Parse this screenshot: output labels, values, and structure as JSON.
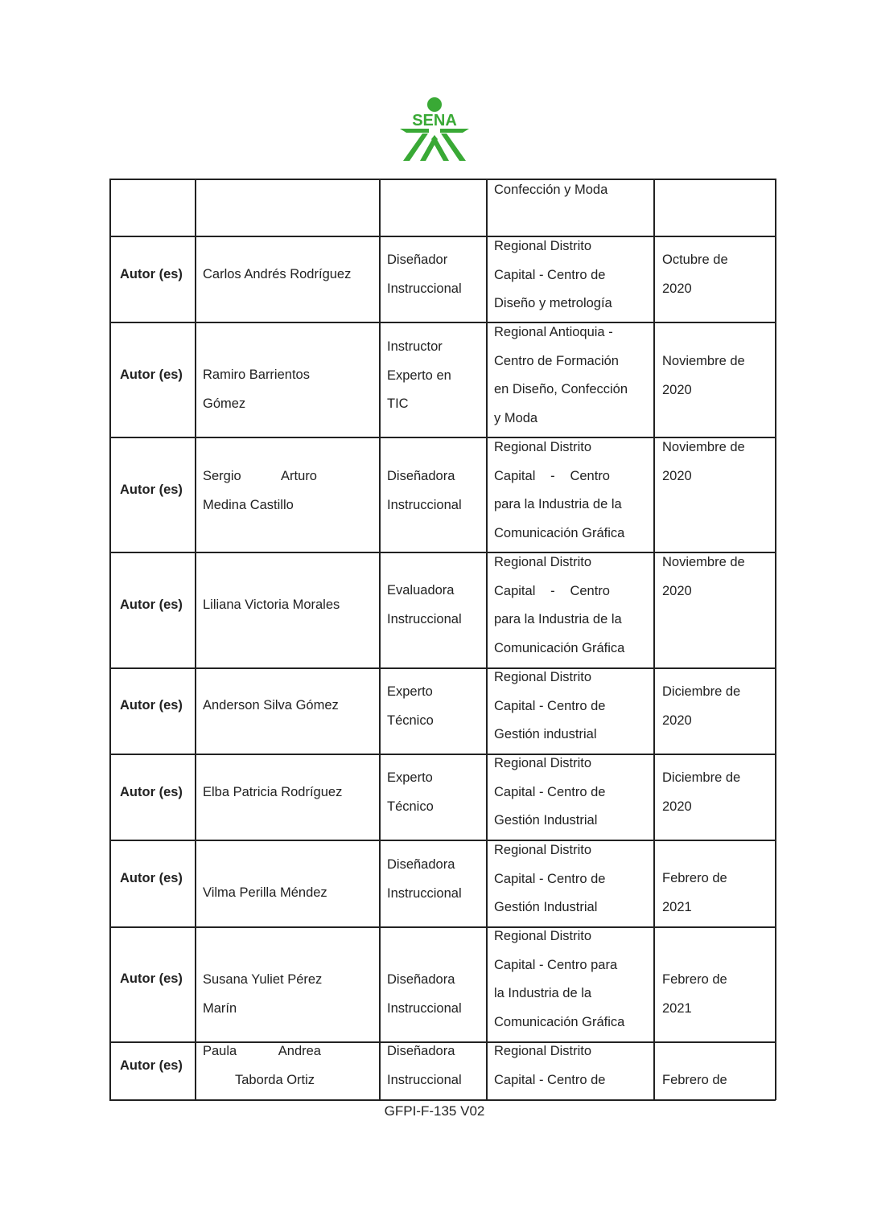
{
  "header": {
    "logo_text": "SENA",
    "logo_color": "#39a935"
  },
  "table": {
    "rows": [
      {
        "label": "",
        "name": [],
        "role": [],
        "location": [
          "Confección y Moda"
        ],
        "date": []
      },
      {
        "label": "Autor (es)",
        "name": [
          "Carlos Andrés Rodríguez"
        ],
        "role": [
          "Diseñador",
          "Instruccional"
        ],
        "location": [
          "Regional Distrito",
          "Capital - Centro de",
          "Diseño y metrología"
        ],
        "date": [
          "Octubre de",
          "2020"
        ]
      },
      {
        "label": "Autor (es)",
        "name": [
          "Ramiro Barrientos",
          "Gómez"
        ],
        "role": [
          "Instructor",
          "Experto en",
          "TIC"
        ],
        "location": [
          "Regional Antioquia -",
          "Centro de Formación",
          "en Diseño, Confección",
          "y Moda"
        ],
        "date": [
          "Noviembre de",
          "2020"
        ]
      },
      {
        "label": "Autor (es)",
        "name": [
          "Sergio Arturo",
          "Medina Castillo"
        ],
        "role": [
          "Diseñadora",
          "Instruccional"
        ],
        "location": [
          "Regional Distrito",
          "Capital - Centro",
          "para la Industria de la",
          "Comunicación Gráfica"
        ],
        "date": [
          "Noviembre de",
          "2020"
        ]
      },
      {
        "label": "Autor (es)",
        "name": [
          "Liliana Victoria Morales"
        ],
        "role": [
          "Evaluadora",
          "Instruccional"
        ],
        "location": [
          "Regional Distrito",
          "Capital - Centro",
          "para la Industria de la",
          "Comunicación Gráfica"
        ],
        "date": [
          "Noviembre de",
          "2020"
        ]
      },
      {
        "label": "Autor (es)",
        "name": [
          "Anderson Silva Gómez"
        ],
        "role": [
          "Experto",
          "Técnico"
        ],
        "location": [
          "Regional Distrito",
          "Capital - Centro de",
          "Gestión industrial"
        ],
        "date": [
          "Diciembre de",
          "2020"
        ]
      },
      {
        "label": "Autor (es)",
        "name": [
          "Elba Patricia Rodríguez"
        ],
        "role": [
          "Experto",
          "Técnico"
        ],
        "location": [
          "Regional Distrito",
          "Capital - Centro de",
          "Gestión Industrial"
        ],
        "date": [
          "Diciembre de",
          "2020"
        ]
      },
      {
        "label": "Autor (es)",
        "name": [
          "Vilma Perilla Méndez"
        ],
        "role": [
          "Diseñadora",
          "Instruccional"
        ],
        "location": [
          "Regional Distrito",
          "Capital - Centro de",
          "Gestión Industrial"
        ],
        "date": [
          "Febrero de",
          "2021"
        ]
      },
      {
        "label": "Autor (es)",
        "name": [
          "Susana Yuliet Pérez",
          "Marín"
        ],
        "role": [
          "Diseñadora",
          "Instruccional"
        ],
        "location": [
          "Regional Distrito",
          "Capital - Centro para",
          "la Industria de la",
          "Comunicación Gráfica"
        ],
        "date": [
          "Febrero de",
          "2021"
        ]
      },
      {
        "label": "Autor (es)",
        "name": [
          "Paula Andrea",
          "Taborda Ortiz"
        ],
        "role": [
          "Diseñadora",
          "Instruccional"
        ],
        "location": [
          "Regional Distrito",
          "Capital - Centro de"
        ],
        "date": [
          "Febrero de"
        ]
      }
    ]
  },
  "footer": {
    "code": "GFPI-F-135 V02"
  }
}
